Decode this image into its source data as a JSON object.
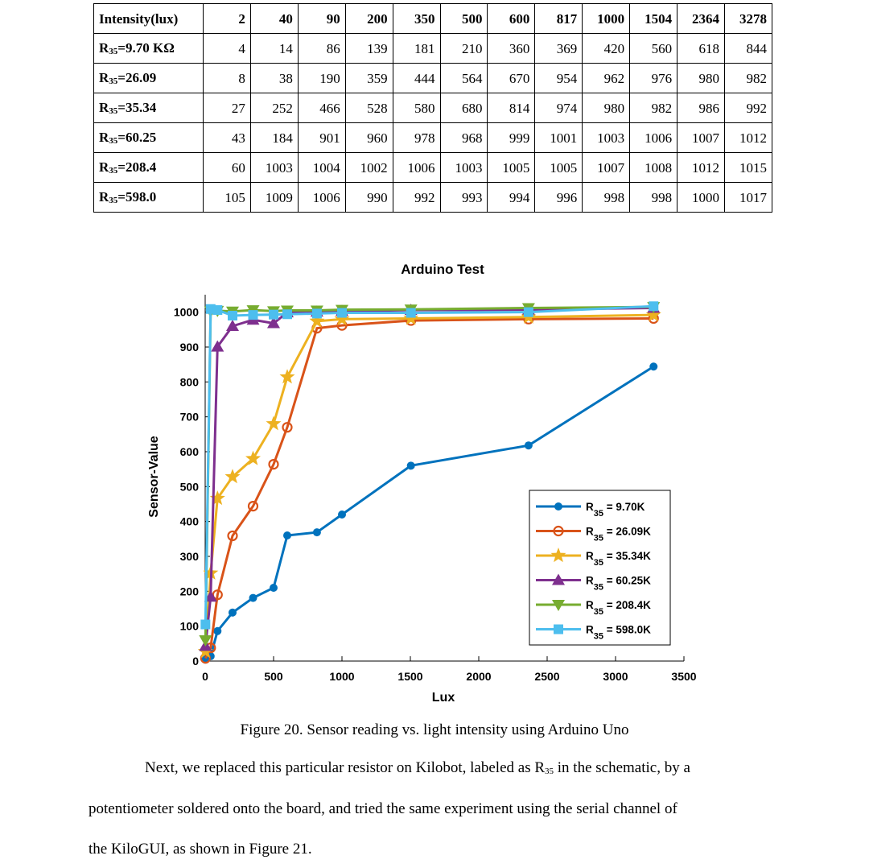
{
  "table": {
    "header_label": "Intensity(lux)",
    "columns": [
      "2",
      "40",
      "90",
      "200",
      "350",
      "500",
      "600",
      "817",
      "1000",
      "1504",
      "2364",
      "3278"
    ],
    "rows": [
      {
        "label_prefix": "R",
        "label_sub": "35",
        "label_suffix": "=9.70 KΩ",
        "values": [
          "4",
          "14",
          "86",
          "139",
          "181",
          "210",
          "360",
          "369",
          "420",
          "560",
          "618",
          "844"
        ]
      },
      {
        "label_prefix": "R",
        "label_sub": "35",
        "label_suffix": "=26.09",
        "values": [
          "8",
          "38",
          "190",
          "359",
          "444",
          "564",
          "670",
          "954",
          "962",
          "976",
          "980",
          "982"
        ]
      },
      {
        "label_prefix": "R",
        "label_sub": "35",
        "label_suffix": "=35.34",
        "values": [
          "27",
          "252",
          "466",
          "528",
          "580",
          "680",
          "814",
          "974",
          "980",
          "982",
          "986",
          "992"
        ]
      },
      {
        "label_prefix": "R",
        "label_sub": "35",
        "label_suffix": "=60.25",
        "values": [
          "43",
          "184",
          "901",
          "960",
          "978",
          "968",
          "999",
          "1001",
          "1003",
          "1006",
          "1007",
          "1012"
        ]
      },
      {
        "label_prefix": "R",
        "label_sub": "35",
        "label_suffix": "=208.4",
        "values": [
          "60",
          "1003",
          "1004",
          "1002",
          "1006",
          "1003",
          "1005",
          "1005",
          "1007",
          "1008",
          "1012",
          "1015"
        ]
      },
      {
        "label_prefix": "R",
        "label_sub": "35",
        "label_suffix": "=598.0",
        "values": [
          "105",
          "1009",
          "1006",
          "990",
          "992",
          "993",
          "994",
          "996",
          "998",
          "998",
          "1000",
          "1017"
        ]
      }
    ]
  },
  "chart_data": {
    "type": "line",
    "title": "Arduino Test",
    "xlabel": "Lux",
    "ylabel": "Sensor-Value",
    "xlim": [
      0,
      3500
    ],
    "ylim": [
      0,
      1000
    ],
    "xticks": [
      "0",
      "500",
      "1000",
      "1500",
      "2000",
      "2500",
      "3000",
      "3500"
    ],
    "yticks": [
      "0",
      "100",
      "200",
      "300",
      "400",
      "500",
      "600",
      "700",
      "800",
      "900",
      "1000"
    ],
    "legend_position": "lower-right",
    "x": [
      2,
      40,
      90,
      200,
      350,
      500,
      600,
      817,
      1000,
      1504,
      2364,
      3278
    ],
    "series": [
      {
        "name_prefix": "R",
        "name_sub": "35",
        "name_suffix": " = 9.70K",
        "color": "#0072BD",
        "marker": "dot",
        "values": [
          4,
          14,
          86,
          139,
          181,
          210,
          360,
          369,
          420,
          560,
          618,
          844
        ]
      },
      {
        "name_prefix": "R",
        "name_sub": "35",
        "name_suffix": " = 26.09K",
        "color": "#D95319",
        "marker": "circle",
        "values": [
          8,
          38,
          190,
          359,
          444,
          564,
          670,
          954,
          962,
          976,
          980,
          982
        ]
      },
      {
        "name_prefix": "R",
        "name_sub": "35",
        "name_suffix": " = 35.34K",
        "color": "#EDB120",
        "marker": "star",
        "values": [
          27,
          252,
          466,
          528,
          580,
          680,
          814,
          974,
          980,
          982,
          986,
          992
        ]
      },
      {
        "name_prefix": "R",
        "name_sub": "35",
        "name_suffix": " = 60.25K",
        "color": "#7E2F8E",
        "marker": "triangle-up",
        "values": [
          43,
          184,
          901,
          960,
          978,
          968,
          999,
          1001,
          1003,
          1006,
          1007,
          1012
        ]
      },
      {
        "name_prefix": "R",
        "name_sub": "35",
        "name_suffix": " = 208.4K",
        "color": "#77AC30",
        "marker": "triangle-down",
        "values": [
          60,
          1003,
          1004,
          1002,
          1006,
          1003,
          1005,
          1005,
          1007,
          1008,
          1012,
          1015
        ]
      },
      {
        "name_prefix": "R",
        "name_sub": "35",
        "name_suffix": " = 598.0K",
        "color": "#4DBEEE",
        "marker": "square",
        "values": [
          105,
          1009,
          1006,
          990,
          992,
          993,
          994,
          996,
          998,
          998,
          1000,
          1017
        ]
      }
    ]
  },
  "caption": "Figure 20. Sensor reading vs. light intensity using Arduino Uno",
  "paragraph": {
    "line1_a": "Next, we replaced this particular resistor on Kilobot, labeled as R",
    "line1_sub": "35",
    "line1_b": " in the schematic, by a",
    "line2": "potentiometer soldered onto the board, and tried the same experiment using the serial channel of",
    "line3": "the KiloGUI, as shown in Figure 21."
  }
}
